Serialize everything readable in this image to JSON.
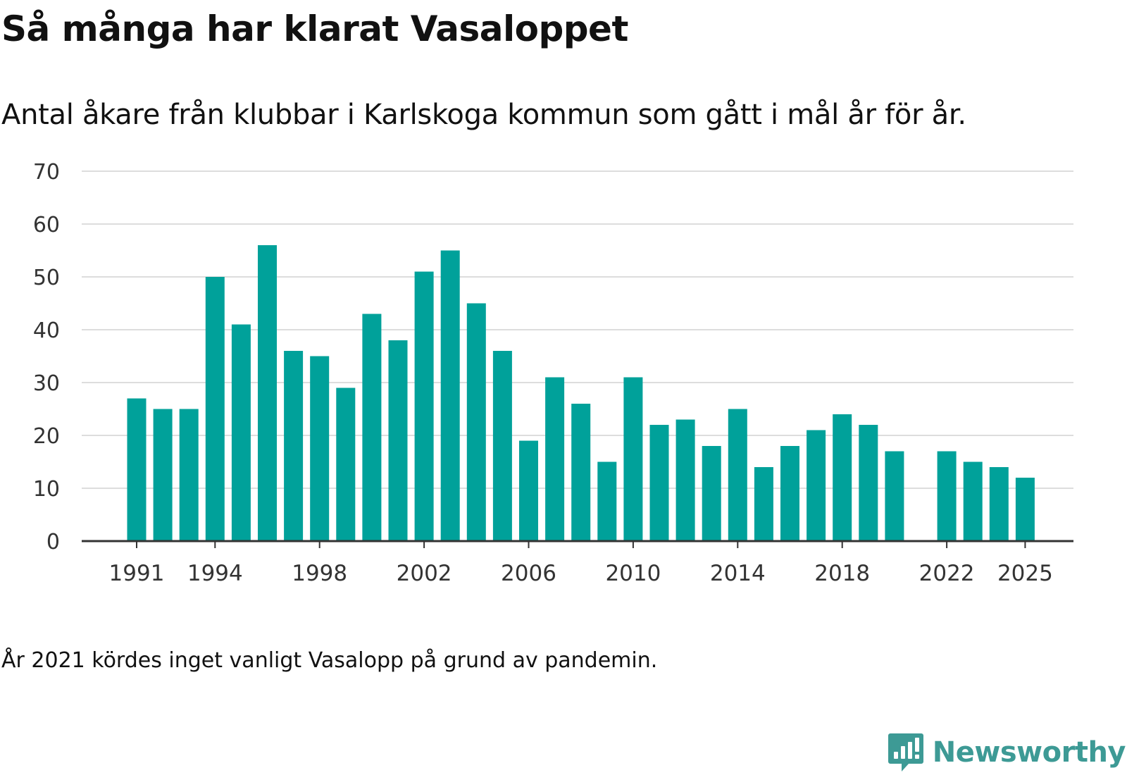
{
  "title": "Så många har klarat Vasaloppet",
  "subtitle": "Antal åkare från klubbar i Karlskoga kommun som gått i mål år för år.",
  "note": "År 2021 kördes inget vanligt Vasalopp på grund av pandemin.",
  "brand": "Newsworthy",
  "colors": {
    "bar": "#00a19a",
    "grid": "#dddddd",
    "axis": "#333333",
    "brand": "#3d9a95"
  },
  "chart_data": {
    "type": "bar",
    "title": "Så många har klarat Vasaloppet",
    "xlabel": "",
    "ylabel": "",
    "x": [
      1991,
      1992,
      1993,
      1994,
      1995,
      1996,
      1997,
      1998,
      1999,
      2000,
      2001,
      2002,
      2003,
      2004,
      2005,
      2006,
      2007,
      2008,
      2009,
      2010,
      2011,
      2012,
      2013,
      2014,
      2015,
      2016,
      2017,
      2018,
      2019,
      2020,
      2021,
      2022,
      2023,
      2024,
      2025
    ],
    "values": [
      27,
      25,
      25,
      50,
      41,
      56,
      36,
      35,
      29,
      43,
      38,
      51,
      55,
      45,
      36,
      19,
      31,
      26,
      15,
      31,
      22,
      23,
      18,
      25,
      14,
      18,
      21,
      24,
      22,
      17,
      null,
      17,
      15,
      14,
      12
    ],
    "ylim": [
      0,
      70
    ],
    "yticks": [
      "0",
      "10",
      "20",
      "30",
      "40",
      "50",
      "60",
      "70"
    ],
    "xticks": [
      "1991",
      "1994",
      "1998",
      "2002",
      "2006",
      "2010",
      "2014",
      "2018",
      "2022",
      "2025"
    ],
    "grid": true
  }
}
